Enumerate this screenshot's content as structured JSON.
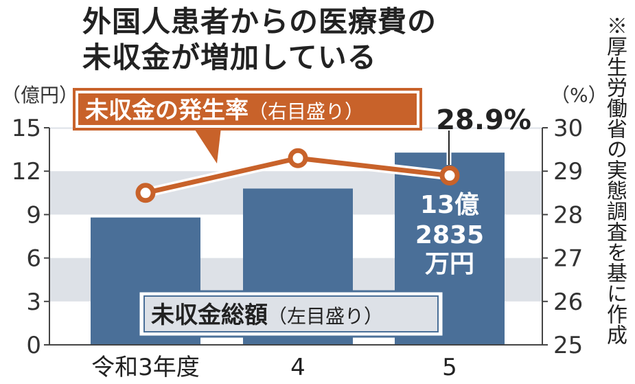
{
  "title_lines": [
    "外国人患者からの医療費の",
    "未収金が増加している"
  ],
  "source_note": "※厚生労働省の実態調査を基に作成",
  "colors": {
    "bar": "#4a6f98",
    "line": "#c8622a",
    "band": "#dde1e7",
    "legend_bar_bg": "#dde1e7",
    "legend_bar_border": "#4a6f98"
  },
  "chart_data": {
    "type": "bar+line",
    "categories": [
      "令和3年度",
      "4",
      "5"
    ],
    "left_axis": {
      "unit_label": "（億円）",
      "ticks": [
        "0",
        "3",
        "6",
        "9",
        "12",
        "15"
      ],
      "range": [
        0,
        15
      ]
    },
    "right_axis": {
      "unit_label": "（%）",
      "ticks": [
        "25",
        "26",
        "27",
        "28",
        "29",
        "30"
      ],
      "range": [
        25,
        30
      ]
    },
    "series": [
      {
        "name": "未収金総額（左目盛り）",
        "type": "bar",
        "axis": "left",
        "values": [
          8.8,
          10.8,
          13.2835
        ]
      },
      {
        "name": "未収金の発生率（右目盛り）",
        "type": "line",
        "axis": "right",
        "values": [
          28.5,
          29.3,
          28.9
        ]
      }
    ],
    "annotations": {
      "rate_last": "28.9%",
      "total_last_lines": [
        "13億",
        "2835",
        "万円"
      ]
    },
    "legend_rate": {
      "main": "未収金の発生率",
      "sub": "（右目盛り）"
    },
    "legend_total": {
      "main": "未収金総額",
      "sub": "（左目盛り）"
    },
    "grid": "alternating horizontal bands"
  }
}
